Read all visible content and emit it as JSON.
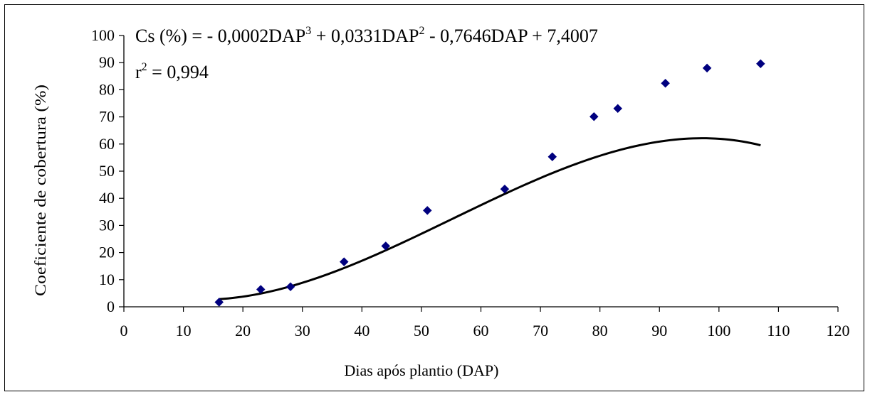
{
  "chart_data": {
    "type": "scatter",
    "xlabel": "Dias após plantio (DAP)",
    "ylabel": "Coeficiente de cobertura (%)",
    "xlim": [
      0,
      120
    ],
    "ylim": [
      0,
      100
    ],
    "x_ticks": [
      0,
      10,
      20,
      30,
      40,
      50,
      60,
      70,
      80,
      90,
      100,
      110,
      120
    ],
    "y_ticks": [
      0,
      10,
      20,
      30,
      40,
      50,
      60,
      70,
      80,
      90,
      100
    ],
    "grid": false,
    "legend": "none",
    "marker_color": "#00007f",
    "line_color": "#000000",
    "points": {
      "x": [
        16,
        23,
        28,
        37,
        44,
        51,
        64,
        72,
        79,
        83,
        91,
        98,
        107
      ],
      "y": [
        1.7,
        6.4,
        7.4,
        16.6,
        22.4,
        35.5,
        43.4,
        55.3,
        70.1,
        73.1,
        82.4,
        88.0,
        89.6
      ]
    },
    "trendline": {
      "type": "polynomial",
      "coefficients": [
        7.4007,
        -0.7646,
        0.0331,
        -0.0002
      ],
      "x_range": [
        16,
        107
      ]
    },
    "annotations": {
      "equation": {
        "prefix": "Cs (%) = - 0,0002DAP",
        "exp1": "3",
        "mid1": " + 0,0331DAP",
        "exp2": "2",
        "tail": " - 0,7646DAP + 7,4007"
      },
      "r2": {
        "base": "r",
        "exp": "2",
        "value": " = 0,994"
      }
    }
  }
}
